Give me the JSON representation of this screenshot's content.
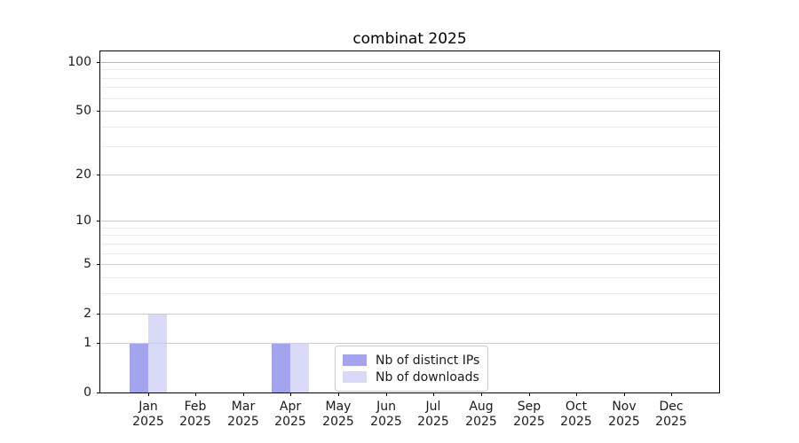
{
  "page": {
    "background": "#ffffff"
  },
  "chart_data": {
    "type": "bar",
    "title": "combinat 2025",
    "categories": [
      "Jan",
      "Feb",
      "Mar",
      "Apr",
      "May",
      "Jun",
      "Jul",
      "Aug",
      "Sep",
      "Oct",
      "Nov",
      "Dec"
    ],
    "x_tick_year": "2025",
    "xlabel": "",
    "ylabel": "",
    "series": [
      {
        "name": "Nb of distinct IPs",
        "color": "#a4a4ee",
        "values": [
          1,
          0,
          0,
          1,
          0,
          0,
          0,
          0,
          0,
          0,
          0,
          0
        ]
      },
      {
        "name": "Nb of downloads",
        "color": "#d8d8f7",
        "values": [
          2,
          0,
          0,
          1,
          0,
          0,
          0,
          0,
          0,
          0,
          0,
          0
        ]
      }
    ],
    "yscale": "log1p",
    "ylim": [
      0,
      116
    ],
    "yticks": [
      0,
      1,
      2,
      5,
      10,
      20,
      50,
      100
    ],
    "minor_yticks": [
      3,
      4,
      6,
      7,
      8,
      9,
      30,
      40,
      60,
      70,
      80,
      90
    ],
    "grid": true,
    "legend": {
      "position": "bottom-center",
      "entries": [
        "Nb of distinct IPs",
        "Nb of downloads"
      ]
    }
  },
  "styles": {
    "axis_color": "#000000",
    "text_color": "#1a1a1a",
    "grid_major_color": "#cccccc",
    "grid_minor_color": "#ebebeb",
    "grid_top_color": "#b3b3b3",
    "legend_border_color": "#cccccc"
  }
}
